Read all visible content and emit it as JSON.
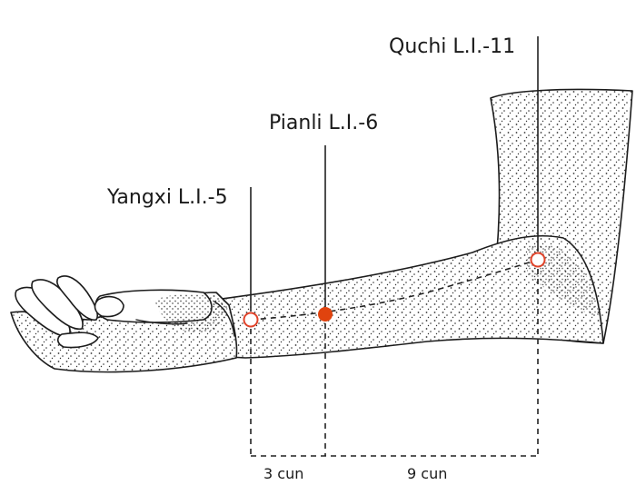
{
  "points": [
    {
      "id": "yangxi",
      "label": "Yangxi L.I.-5",
      "marker": "open-circle",
      "color": "#e0432a"
    },
    {
      "id": "pianli",
      "label": "Pianli L.I.-6",
      "marker": "filled-dot",
      "color": "#e0430e"
    },
    {
      "id": "quchi",
      "label": "Quchi L.I.-11",
      "marker": "open-circle",
      "color": "#e0432a"
    }
  ],
  "measurements": [
    {
      "label": "3 cun"
    },
    {
      "label": "9 cun"
    }
  ],
  "illustration": "forearm-and-hand"
}
